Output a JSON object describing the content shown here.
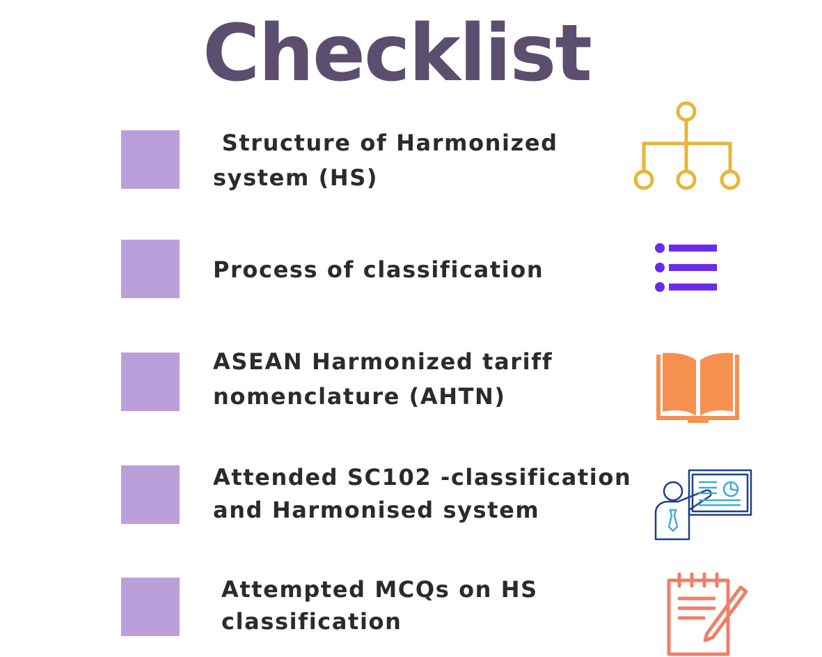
{
  "title": "Checklist",
  "colors": {
    "title": "#5c4e6e",
    "checkbox": "#bb9fdb",
    "text": "#2b2b2b",
    "hierarchy_icon": "#e8b53c",
    "list_icon": "#6a2bf0",
    "book_icon": "#f59050",
    "presentation_icon_outline": "#1c3f8a",
    "presentation_icon_accent": "#3fa9dd",
    "notepad_icon": "#ef7f68"
  },
  "items": [
    {
      "line1": " Structure of Harmonized",
      "line2": "system (HS)",
      "icon": "hierarchy-icon",
      "checked": false
    },
    {
      "line1": "Process of classification",
      "line2": "",
      "icon": "bulleted-list-icon",
      "checked": false
    },
    {
      "line1": "ASEAN Harmonized tariff",
      "line2": "nomenclature (AHTN)",
      "icon": "open-book-icon",
      "checked": false
    },
    {
      "line1": "Attended SC102 -classification",
      "line2": "and Harmonised system",
      "icon": "presentation-icon",
      "checked": false
    },
    {
      "line1": "Attempted MCQs on HS",
      "line2": "classification",
      "icon": "notepad-icon",
      "checked": false
    }
  ]
}
